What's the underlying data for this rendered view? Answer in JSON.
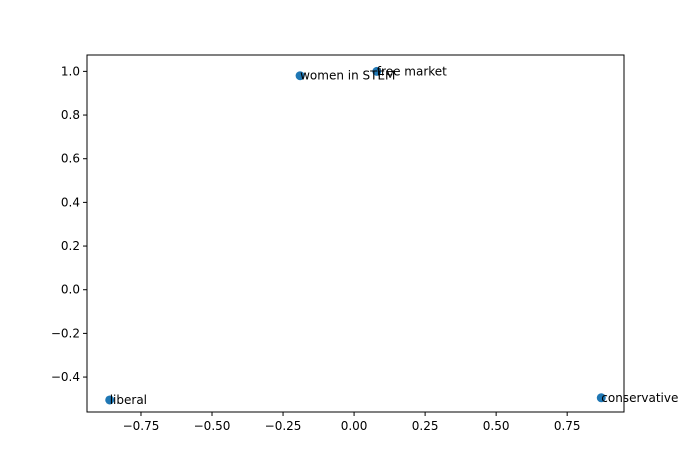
{
  "chart_data": {
    "type": "scatter",
    "title": "",
    "xlabel": "",
    "ylabel": "",
    "xlim": [
      -0.94,
      0.95
    ],
    "ylim": [
      -0.56,
      1.075
    ],
    "xticks": [
      -0.75,
      -0.5,
      -0.25,
      0.0,
      0.25,
      0.5,
      0.75
    ],
    "xtick_labels": [
      "−0.75",
      "−0.50",
      "−0.25",
      "0.00",
      "0.25",
      "0.50",
      "0.75"
    ],
    "yticks": [
      -0.4,
      -0.2,
      0.0,
      0.2,
      0.4,
      0.6,
      0.8,
      1.0
    ],
    "ytick_labels": [
      "−0.4",
      "−0.2",
      "0.0",
      "0.2",
      "0.4",
      "0.6",
      "0.8",
      "1.0"
    ],
    "grid": false,
    "legend": "none",
    "marker_color": "#1f77b4",
    "points": [
      {
        "label": "free market",
        "x": 0.08,
        "y": 1.0
      },
      {
        "label": "women in STEM",
        "x": -0.19,
        "y": 0.98
      },
      {
        "label": "liberal",
        "x": -0.86,
        "y": -0.505
      },
      {
        "label": "conservative",
        "x": 0.87,
        "y": -0.495
      }
    ]
  }
}
